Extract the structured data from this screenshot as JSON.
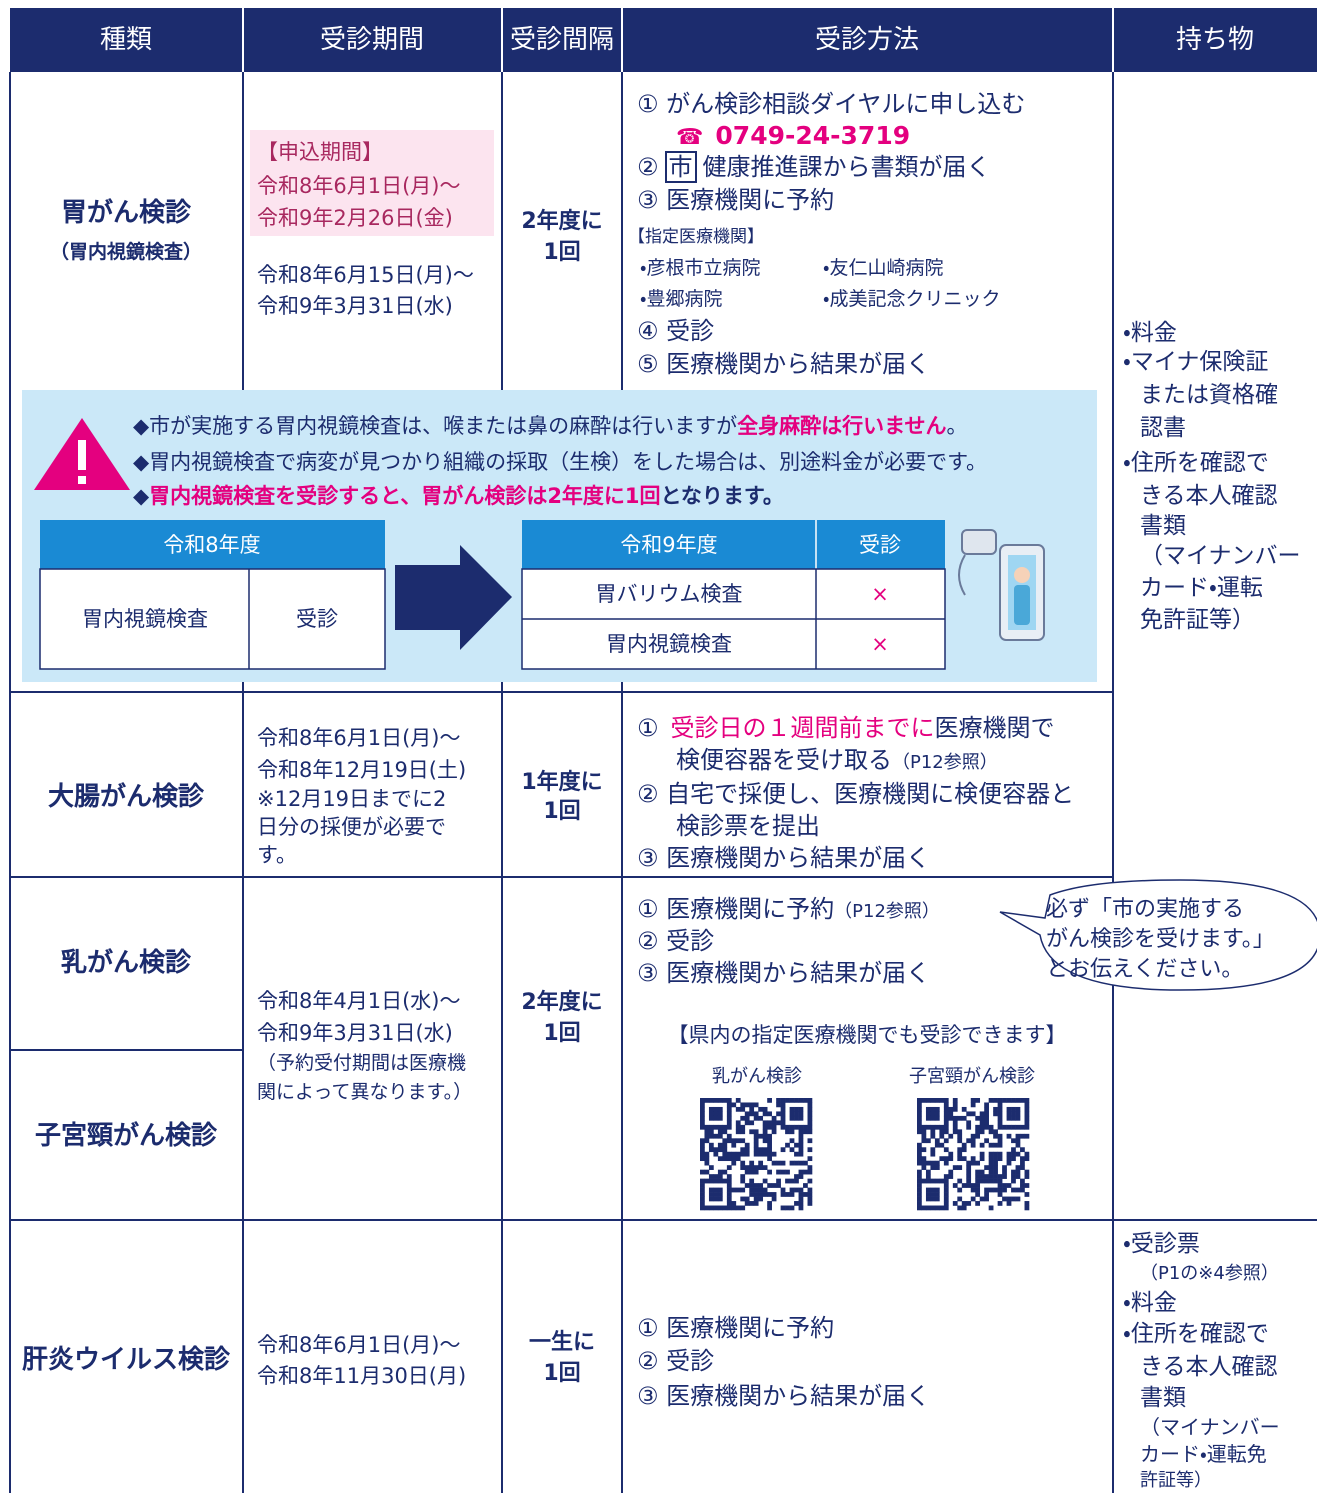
{
  "header": [
    "種類",
    "受診期間",
    "受診間隔",
    "受診方法",
    "持ち物"
  ],
  "rows": [
    {
      "type": "胃がん検診",
      "type_note": "（胃内視鏡検査）",
      "period": {
        "application_title": "【申込期間】",
        "application": [
          "令和8年6月1日(月)～",
          "令和9年2月26日(金)"
        ],
        "exam": [
          "令和8年6月15日(月)～",
          "令和9年3月31日(水)"
        ]
      },
      "interval": [
        "2年度に",
        "1回"
      ],
      "method": {
        "step1": "① がん検診相談ダイヤルに申し込む",
        "phone_icon": "☎",
        "phone": "0749-24-3719",
        "step2_num": "②",
        "step2_badge": "市",
        "step2_text": "健康推進課から書類が届く",
        "step3": "③ 医療機関に予約",
        "facilities_title": "【指定医療機関】",
        "facilities": [
          "・彦根市立病院",
          "・友仁山崎病院",
          "・豊郷病院",
          "・成美記念クリニック"
        ],
        "step4": "④ 受診",
        "step5": "⑤ 医療機関から結果が届く"
      }
    },
    {
      "type": "大腸がん検診",
      "period": [
        "令和8年6月1日(月)～",
        "令和8年12月19日(土)",
        "※12月19日までに2",
        "日分の採便が必要で",
        "す。"
      ],
      "interval": [
        "1年度に",
        "1回"
      ],
      "method": {
        "step1_num": "①",
        "step1_highlight": "受診日の１週間前までに",
        "step1_text": "医療機関で",
        "step1_cont": "検便容器を受け取る",
        "step1_ref": "（P12参照）",
        "step2": "② 自宅で採便し、医療機関に検便容器と",
        "step2_cont": "検診票を提出",
        "step3": "③ 医療機関から結果が届く"
      }
    },
    {
      "types": [
        "乳がん検診",
        "子宮頸がん検診"
      ],
      "period": [
        "令和8年4月1日(水)～",
        "令和9年3月31日(水)",
        "（予約受付期間は医療機",
        "関によって異なります。）"
      ],
      "interval": [
        "2年度に",
        "1回"
      ],
      "method": {
        "step1": "① 医療機関に予約",
        "step1_ref": "（P12参照）",
        "step2": "② 受診",
        "step3": "③ 医療機関から結果が届く",
        "balloon": [
          "必ず「市の実施する",
          "がん検診を受けます。」",
          "とお伝えください。"
        ],
        "prefecture_note": "【県内の指定医療機関でも受診できます】",
        "qr_labels": [
          "乳がん検診",
          "子宮頸がん検診"
        ]
      }
    },
    {
      "type": "肝炎ウイルス検診",
      "period": [
        "令和8年6月1日(月)～",
        "令和8年11月30日(月)"
      ],
      "interval": [
        "一生に",
        "1回"
      ],
      "method": [
        "① 医療機関に予約",
        "② 受診",
        "③ 医療機関から結果が届く"
      ]
    }
  ],
  "belongings": [
    [
      "・料金",
      "・マイナ保険証",
      "または資格確",
      "認書",
      "・住所を確認で",
      "きる本人確認",
      "書類",
      "（マイナンバー",
      "カード・運転",
      "免許証等）"
    ],
    [
      "・受診票",
      "（P1の※4参照）",
      "・料金",
      "・住所を確認で",
      "きる本人確認",
      "書類",
      "（マイナンバー",
      "カード・運転免",
      "許証等）"
    ]
  ],
  "notice": {
    "line1": [
      "◆市が実施する胃内視鏡検査は、喉または鼻の麻酔は行いますが",
      "全身麻酔は行いません",
      "。"
    ],
    "line2": "◆胃内視鏡検査で病変が見つかり組織の採取（生検）をした場合は、別途料金が必要です。",
    "line3": [
      "◆",
      "胃内視鏡検査を受診すると、胃がん検診は2年度に1回",
      "となります。"
    ],
    "before": {
      "header": "令和8年度",
      "cells": [
        "胃内視鏡検査",
        "受診"
      ]
    },
    "after": {
      "headers": [
        "令和9年度",
        "受診"
      ],
      "rows": [
        [
          "胃バリウム検査",
          "×"
        ],
        [
          "胃内視鏡検査",
          "×"
        ]
      ]
    }
  }
}
